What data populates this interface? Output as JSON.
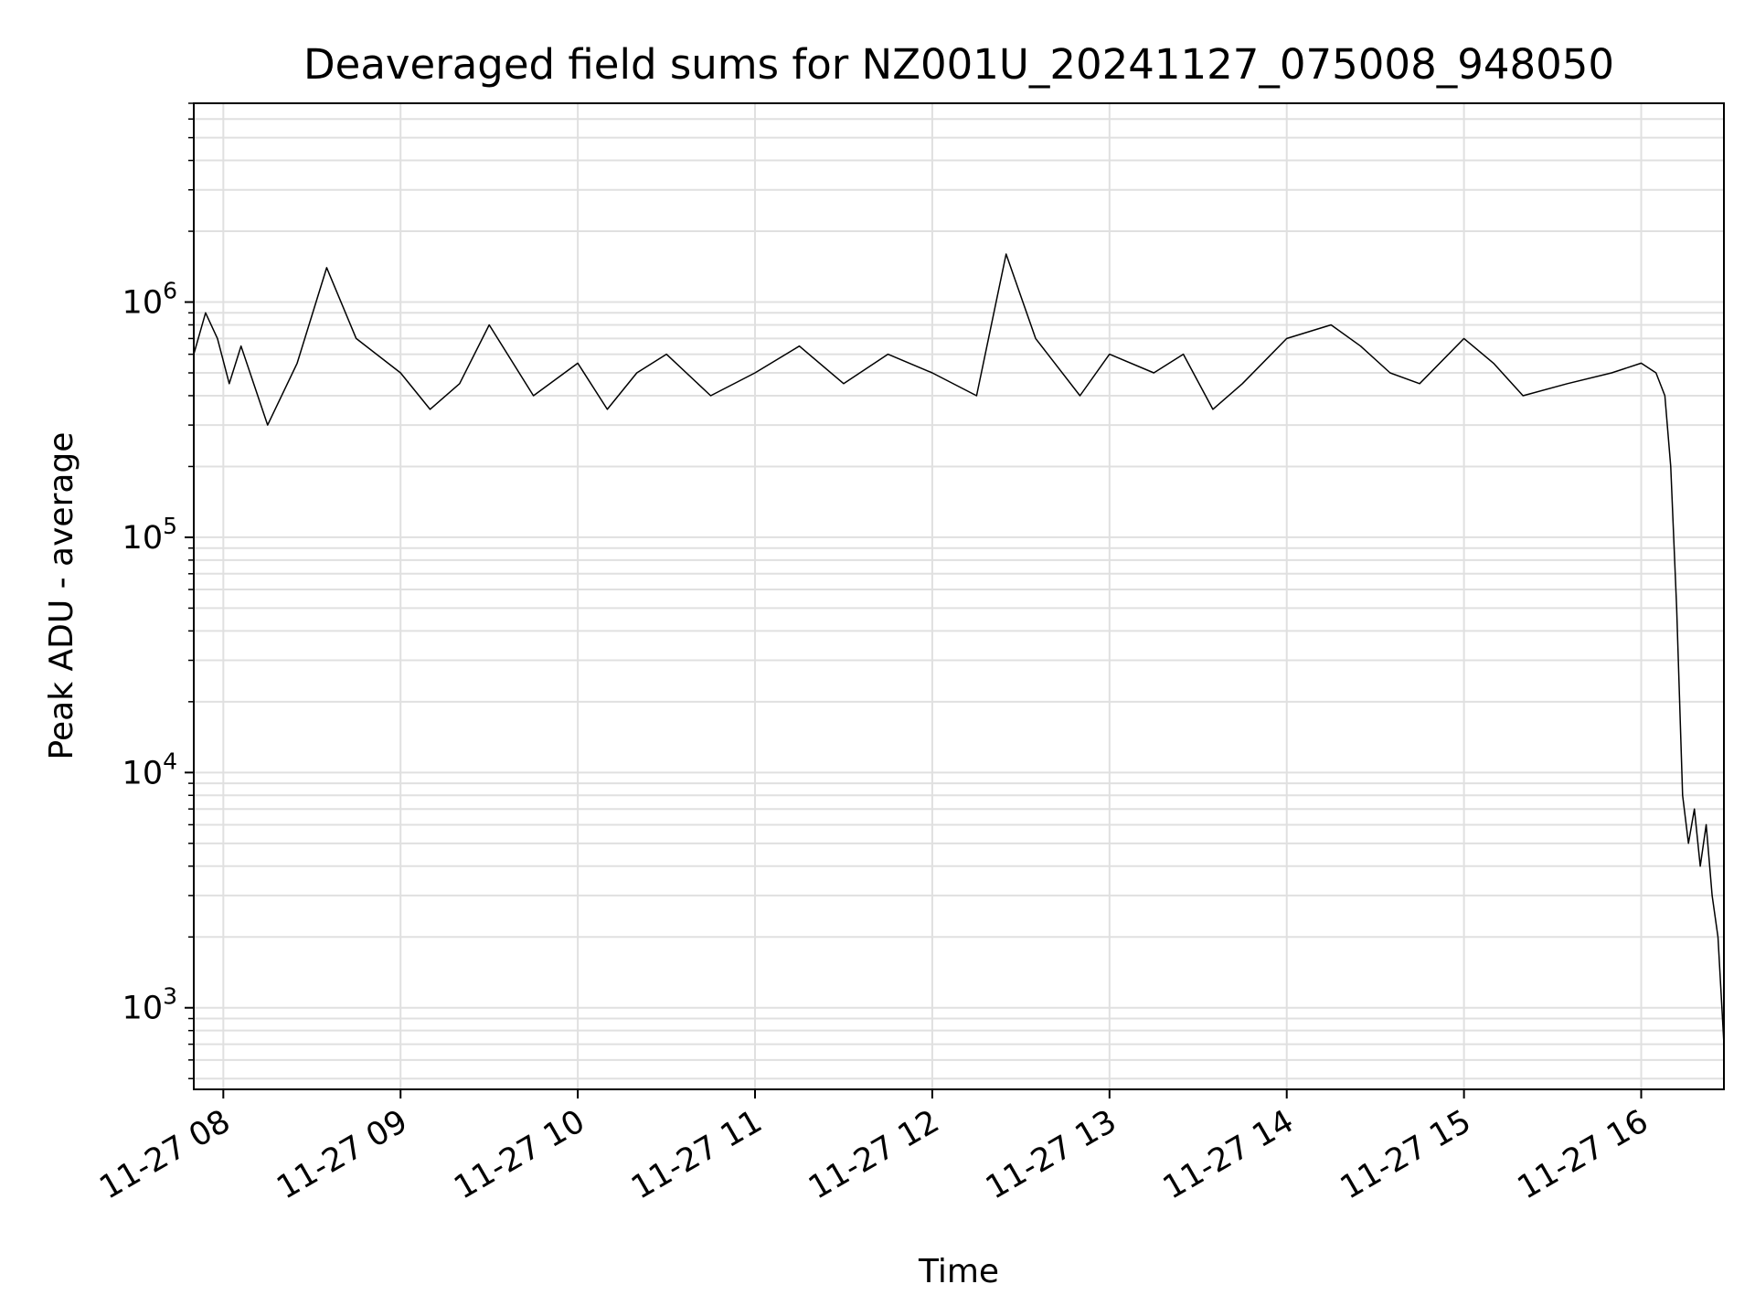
{
  "chart_data": {
    "type": "line",
    "title": "Deaveraged field sums for NZ001U_20241127_075008_948050",
    "xlabel": "Time",
    "ylabel": "Peak ADU - average",
    "y_scale": "log",
    "ylim": [
      450,
      7000000
    ],
    "xlim": [
      "2024-11-27 07:50",
      "2024-11-27 16:28"
    ],
    "grid": true,
    "legend": "none",
    "line_color": "#000000",
    "grid_color": "#e0e0e0",
    "x_ticks": [
      {
        "t": "2024-11-27 08:00",
        "label": "11-27 08"
      },
      {
        "t": "2024-11-27 09:00",
        "label": "11-27 09"
      },
      {
        "t": "2024-11-27 10:00",
        "label": "11-27 10"
      },
      {
        "t": "2024-11-27 11:00",
        "label": "11-27 11"
      },
      {
        "t": "2024-11-27 12:00",
        "label": "11-27 12"
      },
      {
        "t": "2024-11-27 13:00",
        "label": "11-27 13"
      },
      {
        "t": "2024-11-27 14:00",
        "label": "11-27 14"
      },
      {
        "t": "2024-11-27 15:00",
        "label": "11-27 15"
      },
      {
        "t": "2024-11-27 16:00",
        "label": "11-27 16"
      }
    ],
    "y_ticks": [
      {
        "value": 1000,
        "base": "10",
        "exp": "3"
      },
      {
        "value": 10000,
        "base": "10",
        "exp": "4"
      },
      {
        "value": 100000,
        "base": "10",
        "exp": "5"
      },
      {
        "value": 1000000,
        "base": "10",
        "exp": "6"
      }
    ],
    "series": [
      {
        "x": [
          "2024-11-27 07:50",
          "2024-11-27 07:54",
          "2024-11-27 07:58",
          "2024-11-27 08:02",
          "2024-11-27 08:06",
          "2024-11-27 08:15",
          "2024-11-27 08:25",
          "2024-11-27 08:35",
          "2024-11-27 08:45",
          "2024-11-27 09:00",
          "2024-11-27 09:10",
          "2024-11-27 09:20",
          "2024-11-27 09:30",
          "2024-11-27 09:45",
          "2024-11-27 10:00",
          "2024-11-27 10:10",
          "2024-11-27 10:20",
          "2024-11-27 10:30",
          "2024-11-27 10:45",
          "2024-11-27 11:00",
          "2024-11-27 11:15",
          "2024-11-27 11:30",
          "2024-11-27 11:45",
          "2024-11-27 12:00",
          "2024-11-27 12:15",
          "2024-11-27 12:25",
          "2024-11-27 12:35",
          "2024-11-27 12:50",
          "2024-11-27 13:00",
          "2024-11-27 13:15",
          "2024-11-27 13:25",
          "2024-11-27 13:35",
          "2024-11-27 13:45",
          "2024-11-27 14:00",
          "2024-11-27 14:15",
          "2024-11-27 14:25",
          "2024-11-27 14:35",
          "2024-11-27 14:45",
          "2024-11-27 15:00",
          "2024-11-27 15:10",
          "2024-11-27 15:20",
          "2024-11-27 15:35",
          "2024-11-27 15:50",
          "2024-11-27 16:00",
          "2024-11-27 16:05",
          "2024-11-27 16:08",
          "2024-11-27 16:10",
          "2024-11-27 16:12",
          "2024-11-27 16:14",
          "2024-11-27 16:16",
          "2024-11-27 16:18",
          "2024-11-27 16:20",
          "2024-11-27 16:22",
          "2024-11-27 16:24",
          "2024-11-27 16:26",
          "2024-11-27 16:28"
        ],
        "y": [
          600000,
          900000,
          700000,
          450000,
          650000,
          300000,
          550000,
          1400000,
          700000,
          500000,
          350000,
          450000,
          800000,
          400000,
          550000,
          350000,
          500000,
          600000,
          400000,
          500000,
          650000,
          450000,
          600000,
          500000,
          400000,
          1600000,
          700000,
          400000,
          600000,
          500000,
          600000,
          350000,
          450000,
          700000,
          800000,
          650000,
          500000,
          450000,
          700000,
          550000,
          400000,
          450000,
          500000,
          550000,
          500000,
          400000,
          200000,
          50000,
          8000,
          5000,
          7000,
          4000,
          6000,
          3000,
          2000,
          700
        ]
      }
    ]
  }
}
